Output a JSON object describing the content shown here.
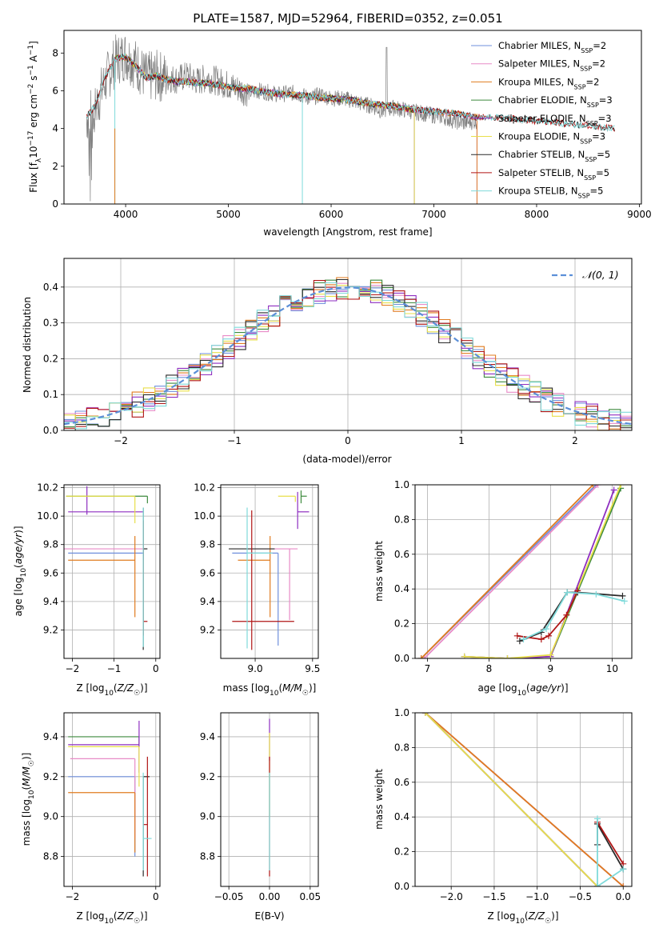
{
  "figure_title": "PLATE=1587, MJD=52964, FIBERID=0352, z=0.051",
  "colors": {
    "chabrier_miles": "#6f8fdc",
    "salpeter_miles": "#e88bc7",
    "kroupa_miles": "#e07b1f",
    "chabrier_elodie": "#3d8a3d",
    "salpeter_elodie": "#8e2ec0",
    "kroupa_elodie": "#e8df4a",
    "chabrier_stelib": "#2a2a2a",
    "salpeter_stelib": "#b01515",
    "kroupa_stelib": "#7fdada",
    "data": "#7f7f7f",
    "normal": "#5b8fd8"
  },
  "chart_data": [
    {
      "id": "spectrum",
      "type": "line",
      "xlabel": "wavelength [Angstrom, rest frame]",
      "ylabel": "Flux [f_λ 10^-17 erg cm^-2 s^-1 A^-1]",
      "ylabel_parts": {
        "pre": "Flux [f",
        "sub": "λ",
        "mid": "10",
        "sup1": "−17",
        "mid2": " erg cm",
        "sup2": "−2",
        "mid3": " s",
        "sup3": "−1",
        "mid4": " A",
        "sup4": "−1",
        "end": "]"
      },
      "xlim": [
        3400,
        9020
      ],
      "ylim": [
        0,
        9.2
      ],
      "xticks": [
        4000,
        5000,
        6000,
        7000,
        8000,
        9000
      ],
      "yticks": [
        0,
        2,
        4,
        6,
        8
      ],
      "legend_position": "top-right",
      "legend": [
        {
          "name": "Chabrier MILES, N",
          "sub": "SSP",
          "tail": "=2",
          "color_key": "chabrier_miles"
        },
        {
          "name": "Salpeter MILES, N",
          "sub": "SSP",
          "tail": "=2",
          "color_key": "salpeter_miles"
        },
        {
          "name": "Kroupa MILES, N",
          "sub": "SSP",
          "tail": "=2",
          "color_key": "kroupa_miles"
        },
        {
          "name": "Chabrier ELODIE, N",
          "sub": "SSP",
          "tail": "=3",
          "color_key": "chabrier_elodie"
        },
        {
          "name": "Salpeter ELODIE, N",
          "sub": "SSP",
          "tail": "=3",
          "color_key": "salpeter_elodie"
        },
        {
          "name": "Kroupa ELODIE, N",
          "sub": "SSP",
          "tail": "=3",
          "color_key": "kroupa_elodie"
        },
        {
          "name": "Chabrier STELIB, N",
          "sub": "SSP",
          "tail": "=5",
          "color_key": "chabrier_stelib"
        },
        {
          "name": "Salpeter STELIB, N",
          "sub": "SSP",
          "tail": "=5",
          "color_key": "salpeter_stelib"
        },
        {
          "name": "Kroupa STELIB, N",
          "sub": "SSP",
          "tail": "=5",
          "color_key": "kroupa_stelib"
        }
      ],
      "data_x": [
        3620,
        3700,
        3800,
        3900,
        4000,
        4100,
        4200,
        4300,
        4400,
        4500,
        4600,
        4700,
        4800,
        4900,
        5000,
        5100,
        5200,
        5300,
        5400,
        5500,
        5600,
        5700,
        5800,
        5900,
        6000,
        6100,
        6200,
        6300,
        6400,
        6500,
        6600,
        6700,
        6800,
        6900,
        7000,
        7100,
        7200,
        7300,
        7400
      ],
      "data_y": [
        4.6,
        5.0,
        6.5,
        7.6,
        7.9,
        7.4,
        6.7,
        6.8,
        6.7,
        6.6,
        6.8,
        6.5,
        6.7,
        6.5,
        6.3,
        6.1,
        5.9,
        6.0,
        5.9,
        5.8,
        5.9,
        5.8,
        5.6,
        5.8,
        5.6,
        5.6,
        5.5,
        5.3,
        5.2,
        4.9,
        5.1,
        5.0,
        4.9,
        4.8,
        4.7,
        4.6,
        4.4,
        4.3,
        4.4
      ],
      "model_x": [
        3620,
        3700,
        3800,
        3900,
        4000,
        4100,
        4200,
        4300,
        4400,
        4500,
        4600,
        4700,
        4800,
        4900,
        5000,
        5200,
        5400,
        5600,
        5800,
        6000,
        6200,
        6400,
        6600,
        6800,
        7000,
        7200,
        7400,
        7600,
        7800,
        8000,
        8200,
        8400,
        8600,
        8760
      ],
      "model_y": [
        4.6,
        5.2,
        6.7,
        7.7,
        7.8,
        7.3,
        6.7,
        6.8,
        6.6,
        6.5,
        6.5,
        6.4,
        6.4,
        6.3,
        6.2,
        6.1,
        5.9,
        5.8,
        5.7,
        5.6,
        5.5,
        5.3,
        5.2,
        5.0,
        4.9,
        4.8,
        4.6,
        4.6,
        4.5,
        4.4,
        4.3,
        4.2,
        4.1,
        4.0
      ],
      "drops": [
        3895,
        5720,
        6810,
        7420
      ],
      "spike": [
        6540,
        8.3
      ]
    },
    {
      "id": "residuals",
      "type": "histogram",
      "xlabel": "(data-model)/error",
      "ylabel": "Normed distribution",
      "xlim": [
        -2.5,
        2.5
      ],
      "ylim": [
        0,
        0.48
      ],
      "xticks": [
        -2,
        -1,
        0,
        1,
        2
      ],
      "yticks": [
        0.0,
        0.1,
        0.2,
        0.3,
        0.4
      ],
      "legend": "N(0,1)",
      "legend_position": "top-right",
      "bin_width": 0.1,
      "base_curve": "normal(0,1)"
    },
    {
      "id": "age_vs_Z",
      "type": "scatter",
      "xlabel": "Z [log10(Z/Z☉)]",
      "ylabel": "age [log10(age/yr)]",
      "xlim": [
        -2.2,
        0.1
      ],
      "ylim": [
        9.0,
        10.22
      ],
      "xticks": [
        -2,
        -1,
        0
      ],
      "yticks": [
        9.2,
        9.4,
        9.6,
        9.8,
        10.0,
        10.2
      ],
      "points": [
        {
          "key": "chabrier_miles",
          "x": -0.3,
          "y": 9.74,
          "xerr": [
            1.8,
            0.0
          ],
          "yerr": [
            0.05,
            0.0
          ]
        },
        {
          "key": "salpeter_miles",
          "x": -0.3,
          "y": 9.77,
          "xerr": [
            1.9,
            0.0
          ],
          "yerr": [
            0.05,
            0.0
          ]
        },
        {
          "key": "kroupa_miles",
          "x": -0.5,
          "y": 9.69,
          "xerr": [
            1.6,
            0.0
          ],
          "yerr": [
            0.4,
            0.17
          ]
        },
        {
          "key": "chabrier_elodie",
          "x": -0.2,
          "y": 10.14,
          "xerr": [
            1.95,
            0.0
          ],
          "yerr": [
            0.05,
            0.0
          ]
        },
        {
          "key": "salpeter_elodie",
          "x": -1.65,
          "y": 10.03,
          "xerr": [
            0.45,
            1.35
          ],
          "yerr": [
            0.02,
            0.18
          ]
        },
        {
          "key": "kroupa_elodie",
          "x": -0.5,
          "y": 10.14,
          "xerr": [
            1.65,
            0.0
          ],
          "yerr": [
            0.19,
            0.0
          ]
        },
        {
          "key": "chabrier_stelib",
          "x": -0.3,
          "y": 9.77,
          "xerr": [
            0.0,
            0.1
          ],
          "yerr": [
            0.71,
            0.29
          ]
        },
        {
          "key": "salpeter_stelib",
          "x": -0.3,
          "y": 9.26,
          "xerr": [
            0.0,
            0.1
          ],
          "yerr": [
            0.1,
            0.71
          ]
        },
        {
          "key": "kroupa_stelib",
          "x": -0.3,
          "y": 9.74,
          "xerr": [
            0.0,
            0.0
          ],
          "yerr": [
            0.66,
            0.32
          ]
        }
      ]
    },
    {
      "id": "age_vs_mass",
      "type": "scatter",
      "xlabel": "mass [log10(M/M☉)]",
      "ylabel": "",
      "xlim": [
        8.7,
        9.55
      ],
      "ylim": [
        9.0,
        10.22
      ],
      "xticks": [
        9.0,
        9.5
      ],
      "yticks": [
        9.2,
        9.4,
        9.6,
        9.8,
        10.0,
        10.2
      ],
      "points": [
        {
          "key": "chabrier_miles",
          "x": 9.2,
          "y": 9.74,
          "xerr": [
            0.4,
            0.0
          ],
          "yerr": [
            0.65,
            0.0
          ]
        },
        {
          "key": "salpeter_miles",
          "x": 9.3,
          "y": 9.77,
          "xerr": [
            0.37,
            0.07
          ],
          "yerr": [
            0.5,
            0.0
          ]
        },
        {
          "key": "kroupa_miles",
          "x": 9.13,
          "y": 9.69,
          "xerr": [
            0.28,
            0.0
          ],
          "yerr": [
            0.4,
            0.17
          ]
        },
        {
          "key": "chabrier_elodie",
          "x": 9.4,
          "y": 10.14,
          "xerr": [
            0.0,
            0.05
          ],
          "yerr": [
            0.05,
            0.04
          ]
        },
        {
          "key": "salpeter_elodie",
          "x": 9.37,
          "y": 10.03,
          "xerr": [
            0.0,
            0.1
          ],
          "yerr": [
            0.12,
            0.14
          ]
        },
        {
          "key": "kroupa_elodie",
          "x": 9.35,
          "y": 10.14,
          "xerr": [
            0.15,
            0.0
          ],
          "yerr": [
            0.04,
            0.0
          ]
        },
        {
          "key": "chabrier_stelib",
          "x": 9.17,
          "y": 9.77,
          "xerr": [
            0.4,
            0.0
          ],
          "yerr": [
            0.0,
            0.0
          ]
        },
        {
          "key": "salpeter_stelib",
          "x": 8.97,
          "y": 9.26,
          "xerr": [
            0.17,
            0.37
          ],
          "yerr": [
            0.2,
            0.78
          ]
        },
        {
          "key": "kroupa_stelib",
          "x": 8.93,
          "y": 9.74,
          "xerr": [
            0.0,
            0.22
          ],
          "yerr": [
            0.67,
            0.32
          ]
        }
      ]
    },
    {
      "id": "mass_weight_vs_age",
      "type": "line",
      "xlabel": "age [log10(age/yr)]",
      "ylabel": "mass weight",
      "xlim": [
        6.8,
        10.32
      ],
      "ylim": [
        0,
        1.0
      ],
      "xticks": [
        7,
        8,
        9,
        10
      ],
      "yticks": [
        0.0,
        0.2,
        0.4,
        0.6,
        0.8,
        1.0
      ],
      "series": [
        {
          "key": "chabrier_miles",
          "x": [
            6.9,
            9.74
          ],
          "y": [
            0.0,
            1.0
          ]
        },
        {
          "key": "salpeter_miles",
          "x": [
            6.95,
            9.77
          ],
          "y": [
            0.0,
            1.0
          ]
        },
        {
          "key": "kroupa_miles",
          "x": [
            6.9,
            9.69
          ],
          "y": [
            0.0,
            1.0
          ]
        },
        {
          "key": "chabrier_elodie",
          "x": [
            7.6,
            8.3,
            9.0,
            10.14
          ],
          "y": [
            0.01,
            0.0,
            0.01,
            0.98
          ]
        },
        {
          "key": "salpeter_elodie",
          "x": [
            7.6,
            8.3,
            9.0,
            10.03
          ],
          "y": [
            0.01,
            0.0,
            0.01,
            0.97
          ]
        },
        {
          "key": "kroupa_elodie",
          "x": [
            7.6,
            8.3,
            9.0,
            10.14
          ],
          "y": [
            0.01,
            0.0,
            0.02,
            1.0
          ]
        },
        {
          "key": "chabrier_stelib",
          "x": [
            8.5,
            8.85,
            9.27,
            9.44,
            10.17
          ],
          "y": [
            0.1,
            0.15,
            0.38,
            0.38,
            0.36
          ]
        },
        {
          "key": "salpeter_stelib",
          "x": [
            8.46,
            8.85,
            8.97,
            9.26,
            9.44
          ],
          "y": [
            0.13,
            0.11,
            0.13,
            0.25,
            0.39
          ]
        },
        {
          "key": "kroupa_stelib",
          "x": [
            8.56,
            8.93,
            9.27,
            9.74,
            10.2
          ],
          "y": [
            0.11,
            0.17,
            0.38,
            0.37,
            0.33
          ]
        }
      ]
    },
    {
      "id": "mass_vs_Z",
      "type": "scatter",
      "xlabel": "Z [log10(Z/Z☉)]",
      "ylabel": "mass [log10(M/M☉)]",
      "xlim": [
        -2.2,
        0.1
      ],
      "ylim": [
        8.65,
        9.52
      ],
      "xticks": [
        -2,
        0
      ],
      "yticks": [
        8.8,
        9.0,
        9.2,
        9.4
      ],
      "points": [
        {
          "key": "chabrier_miles",
          "x": -0.5,
          "y": 9.2,
          "xerr": [
            1.6,
            0.0
          ],
          "yerr": [
            0.4,
            0.0
          ]
        },
        {
          "key": "salpeter_miles",
          "x": -0.5,
          "y": 9.29,
          "xerr": [
            1.55,
            0.0
          ],
          "yerr": [
            0.4,
            0.0
          ]
        },
        {
          "key": "kroupa_miles",
          "x": -0.5,
          "y": 9.12,
          "xerr": [
            1.6,
            0.0
          ],
          "yerr": [
            0.3,
            0.0
          ]
        },
        {
          "key": "chabrier_elodie",
          "x": -0.4,
          "y": 9.4,
          "xerr": [
            1.7,
            0.0
          ],
          "yerr": [
            0.05,
            0.0
          ]
        },
        {
          "key": "salpeter_elodie",
          "x": -0.4,
          "y": 9.36,
          "xerr": [
            1.7,
            0.0
          ],
          "yerr": [
            0.14,
            0.12
          ]
        },
        {
          "key": "kroupa_elodie",
          "x": -0.4,
          "y": 9.35,
          "xerr": [
            1.7,
            0.0
          ],
          "yerr": [
            0.2,
            0.0
          ]
        },
        {
          "key": "chabrier_stelib",
          "x": -0.3,
          "y": 9.2,
          "xerr": [
            0.0,
            0.15
          ],
          "yerr": [
            0.5,
            0.0
          ]
        },
        {
          "key": "salpeter_stelib",
          "x": -0.2,
          "y": 8.96,
          "xerr": [
            0.1,
            0.0
          ],
          "yerr": [
            0.26,
            0.34
          ]
        },
        {
          "key": "kroupa_stelib",
          "x": -0.3,
          "y": 8.89,
          "xerr": [
            0.0,
            0.2
          ],
          "yerr": [
            0.16,
            0.33
          ]
        }
      ]
    },
    {
      "id": "mass_vs_ebv",
      "type": "scatter",
      "xlabel": "E(B-V)",
      "ylabel": "",
      "xlim": [
        -0.06,
        0.06
      ],
      "ylim": [
        8.65,
        9.52
      ],
      "xticks": [
        -0.05,
        0.0,
        0.05
      ],
      "yticks": [
        8.8,
        9.0,
        9.2,
        9.4
      ],
      "points": [
        {
          "key": "salpeter_elodie",
          "x": 0.0,
          "y": 9.36,
          "xerr": [
            0,
            0
          ],
          "yerr": [
            0.08,
            0.13
          ]
        },
        {
          "key": "kroupa_elodie",
          "x": 0.0,
          "y": 9.1,
          "xerr": [
            0,
            0
          ],
          "yerr": [
            0.1,
            0.32
          ]
        },
        {
          "key": "salpeter_stelib",
          "x": 0.0,
          "y": 9.2,
          "xerr": [
            0,
            0
          ],
          "yerr": [
            0.5,
            0.1
          ]
        },
        {
          "key": "kroupa_stelib",
          "x": 0.0,
          "y": 8.95,
          "xerr": [
            0,
            0
          ],
          "yerr": [
            0.22,
            0.27
          ]
        }
      ]
    },
    {
      "id": "mass_weight_vs_Z",
      "type": "line",
      "xlabel": "Z [log10(Z/Z☉)]",
      "ylabel": "mass weight",
      "xlim": [
        -2.42,
        0.1
      ],
      "ylim": [
        0,
        1.0
      ],
      "xticks": [
        -2.0,
        -1.5,
        -1.0,
        -0.5,
        0.0
      ],
      "yticks": [
        0.0,
        0.2,
        0.4,
        0.6,
        0.8,
        1.0
      ],
      "series": [
        {
          "key": "chabrier_miles",
          "x": [
            -2.3,
            0.0
          ],
          "y": [
            1.0,
            0.0
          ]
        },
        {
          "key": "salpeter_miles",
          "x": [
            -2.3,
            0.0
          ],
          "y": [
            1.0,
            0.0
          ]
        },
        {
          "key": "kroupa_miles",
          "x": [
            -2.3,
            0.0
          ],
          "y": [
            1.0,
            0.0
          ]
        },
        {
          "key": "chabrier_elodie",
          "x": [
            -2.3,
            -0.3
          ],
          "y": [
            1.0,
            0.0
          ]
        },
        {
          "key": "salpeter_elodie",
          "x": [
            -2.3,
            -0.3
          ],
          "y": [
            1.0,
            0.0
          ]
        },
        {
          "key": "kroupa_elodie",
          "x": [
            -2.3,
            -0.3
          ],
          "y": [
            1.0,
            0.0
          ]
        },
        {
          "key": "chabrier_stelib",
          "x": [
            -0.3,
            -0.3,
            0.0
          ],
          "y": [
            0.24,
            0.36,
            0.1
          ]
        },
        {
          "key": "salpeter_stelib",
          "x": [
            -0.3,
            0.0
          ],
          "y": [
            0.37,
            0.13
          ]
        },
        {
          "key": "kroupa_stelib",
          "x": [
            -0.3,
            -0.3,
            0.0
          ],
          "y": [
            0.39,
            0.0,
            0.1
          ]
        }
      ]
    }
  ]
}
